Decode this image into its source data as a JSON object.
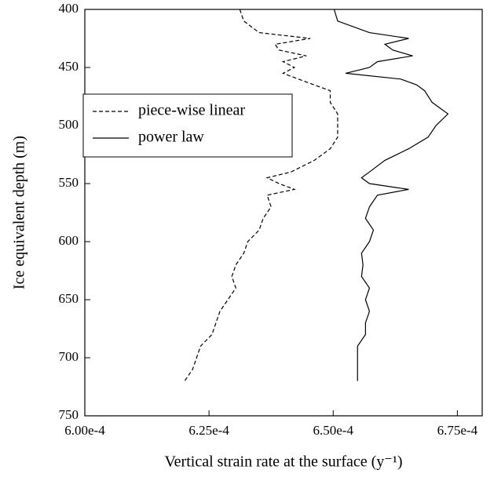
{
  "chart_data": {
    "type": "line",
    "orientation": "vertical",
    "xlabel": "Vertical strain rate at the surface (y⁻¹)",
    "ylabel": "Ice equivalent depth (m)",
    "y": [
      400,
      410,
      420,
      425,
      430,
      435,
      440,
      445,
      450,
      455,
      460,
      465,
      470,
      480,
      490,
      500,
      510,
      520,
      530,
      540,
      545,
      550,
      555,
      560,
      570,
      580,
      590,
      600,
      610,
      620,
      630,
      640,
      650,
      660,
      670,
      680,
      690,
      700,
      710,
      720
    ],
    "series": [
      {
        "name": "piece-wise linear",
        "color": "#000000",
        "linestyle": "dashed",
        "values": [
          0.0006312,
          0.000632,
          0.0006351,
          0.0006454,
          0.0006383,
          0.0006391,
          0.0006446,
          0.0006399,
          0.0006422,
          0.0006399,
          0.000643,
          0.0006462,
          0.0006494,
          0.0006494,
          0.0006509,
          0.0006509,
          0.0006509,
          0.0006494,
          0.0006462,
          0.0006415,
          0.0006367,
          0.0006391,
          0.0006422,
          0.0006367,
          0.0006375,
          0.0006359,
          0.0006351,
          0.0006328,
          0.000632,
          0.0006304,
          0.0006296,
          0.0006304,
          0.0006288,
          0.0006272,
          0.0006264,
          0.0006256,
          0.0006233,
          0.0006225,
          0.0006217,
          0.0006201
        ]
      },
      {
        "name": "power law",
        "color": "#000000",
        "linestyle": "solid",
        "values": [
          0.0006502,
          0.0006509,
          0.0006573,
          0.0006652,
          0.0006604,
          0.000662,
          0.000666,
          0.0006589,
          0.0006573,
          0.0006525,
          0.0006636,
          0.0006668,
          0.0006684,
          0.0006699,
          0.0006731,
          0.0006707,
          0.0006691,
          0.0006652,
          0.0006604,
          0.0006573,
          0.0006557,
          0.0006573,
          0.0006652,
          0.0006589,
          0.0006573,
          0.0006565,
          0.0006581,
          0.0006573,
          0.0006557,
          0.000656,
          0.0006557,
          0.0006573,
          0.0006565,
          0.0006573,
          0.0006565,
          0.0006565,
          0.0006549,
          0.0006549,
          0.0006549,
          0.0006549
        ]
      }
    ],
    "xlim": [
      0.0006,
      0.00068
    ],
    "xticks": [
      {
        "value": 0.0006,
        "label": "6.00e-4"
      },
      {
        "value": 0.000625,
        "label": "6.25e-4"
      },
      {
        "value": 0.00065,
        "label": "6.50e-4"
      },
      {
        "value": 0.000675,
        "label": "6.75e-4"
      }
    ],
    "ylim": [
      750,
      400
    ],
    "yticks": [
      400,
      450,
      500,
      550,
      600,
      650,
      700,
      750
    ],
    "legend": "upper left"
  }
}
